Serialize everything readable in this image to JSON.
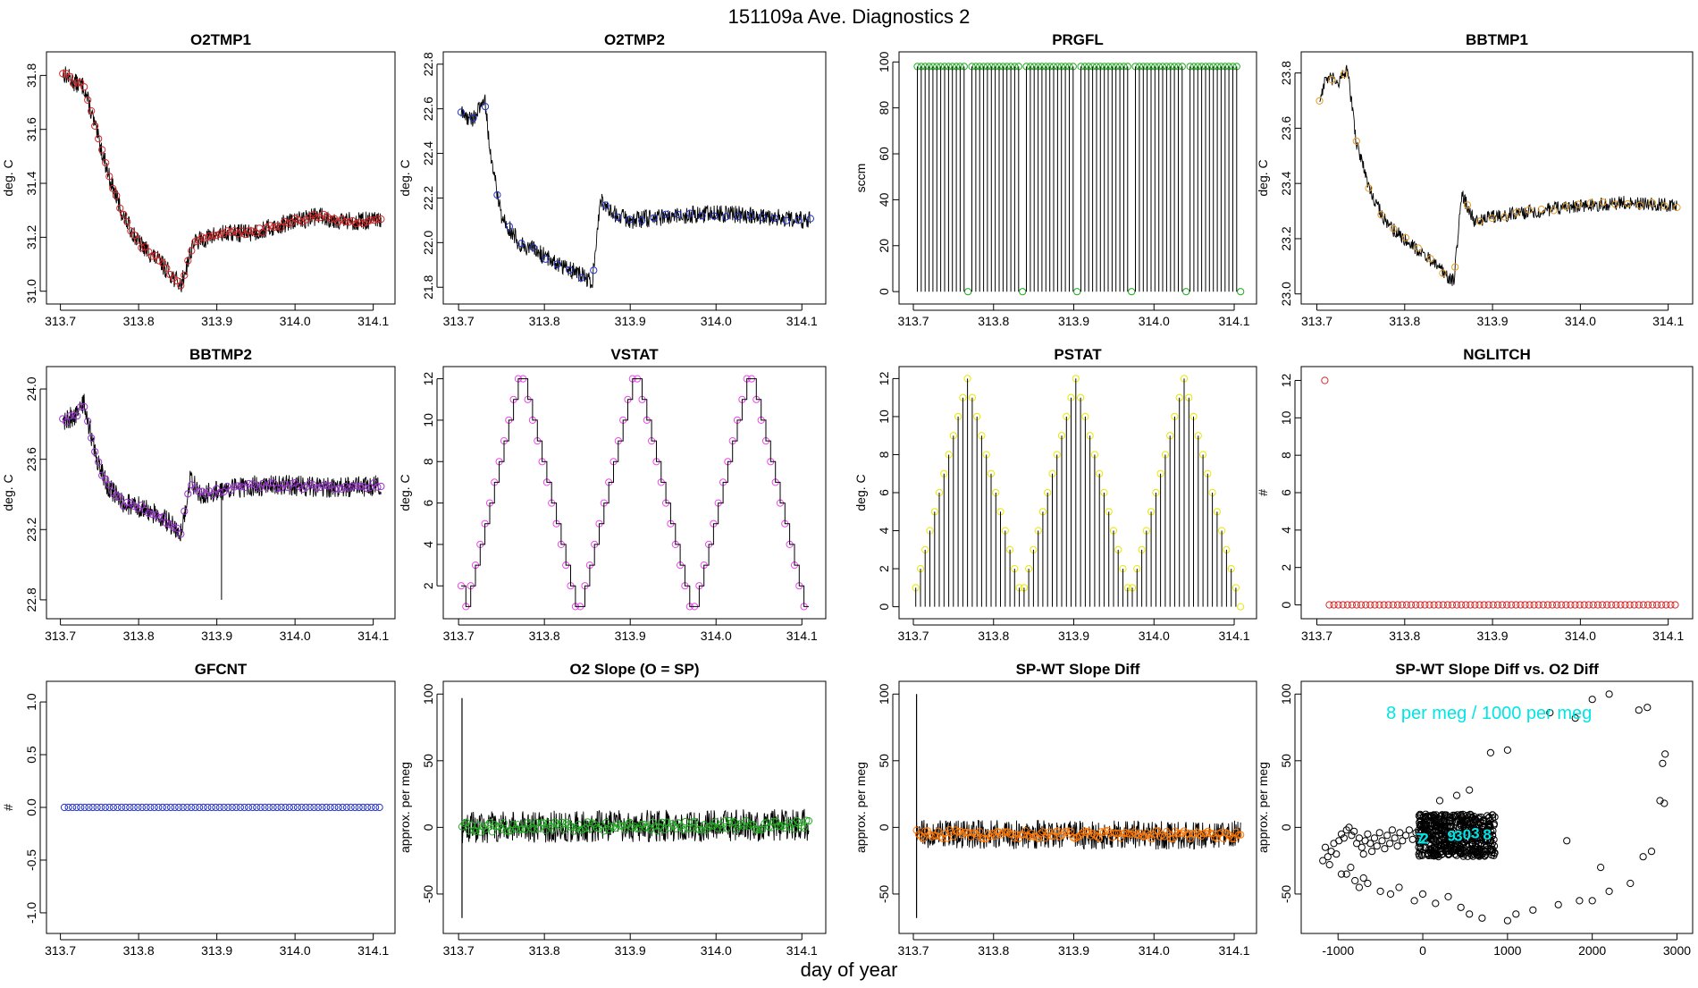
{
  "page": {
    "title": "151109a   Ave. Diagnostics 2",
    "xlabel": "day of year"
  },
  "colors": {
    "red": "#d62728",
    "blue": "#2233cc",
    "green": "#22aa22",
    "orange": "#e69b22",
    "purple": "#9933cc",
    "magenta": "#ee44ee",
    "yellow": "#e8e800",
    "cyan": "#00e5e5",
    "orange_dark": "#ff7700",
    "black": "#000000"
  },
  "chart_data": [
    {
      "id": "o2tmp1",
      "type": "line",
      "title": "O2TMP1",
      "ylabel": "deg. C",
      "xlim": [
        313.7,
        314.11
      ],
      "ylim": [
        30.99,
        31.85
      ],
      "xticks": [
        313.7,
        313.8,
        313.9,
        314.0,
        314.1
      ],
      "xtick_labels": [
        "313.7",
        "313.8",
        "313.9",
        "314.0",
        "314.1"
      ],
      "yticks": [
        31.0,
        31.2,
        31.4,
        31.6,
        31.8
      ],
      "ytick_labels": [
        "31.0",
        "31.2",
        "31.4",
        "31.6",
        "31.8"
      ],
      "trace": {
        "x": [
          313.703,
          313.72,
          313.73,
          313.75,
          313.765,
          313.78,
          313.8,
          313.83,
          313.854,
          313.87,
          313.9,
          313.95,
          314.0,
          314.03,
          314.06,
          314.11
        ],
        "y": [
          31.81,
          31.77,
          31.76,
          31.55,
          31.4,
          31.28,
          31.18,
          31.1,
          31.02,
          31.18,
          31.21,
          31.22,
          31.26,
          31.28,
          31.26,
          31.26
        ]
      },
      "noise": 0.035,
      "marker_color": "red",
      "marker_count": 90
    },
    {
      "id": "o2tmp2",
      "type": "line",
      "title": "O2TMP2",
      "ylabel": "deg. C",
      "xlim": [
        313.7,
        314.11
      ],
      "ylim": [
        21.77,
        22.81
      ],
      "xticks": [
        313.7,
        313.8,
        313.9,
        314.0,
        314.1
      ],
      "xtick_labels": [
        "313.7",
        "313.8",
        "313.9",
        "314.0",
        "314.1"
      ],
      "yticks": [
        21.8,
        22.0,
        22.2,
        22.4,
        22.6,
        22.8
      ],
      "ytick_labels": [
        "21.8",
        "22.0",
        "22.2",
        "22.4",
        "22.6",
        "22.8"
      ],
      "trace": {
        "x": [
          313.703,
          313.715,
          313.725,
          313.73,
          313.737,
          313.75,
          313.77,
          313.8,
          313.84,
          313.856,
          313.865,
          313.875,
          313.9,
          313.95,
          314.0,
          314.05,
          314.11
        ],
        "y": [
          22.58,
          22.55,
          22.6,
          22.66,
          22.4,
          22.12,
          22.0,
          21.94,
          21.86,
          21.82,
          22.2,
          22.14,
          22.1,
          22.12,
          22.13,
          22.12,
          22.1
        ]
      },
      "noise": 0.04,
      "marker_color": "blue",
      "marker_count": 30
    },
    {
      "id": "prgfl",
      "type": "spike",
      "title": "PRGFL",
      "ylabel": "sccm",
      "xlim": [
        313.7,
        314.11
      ],
      "ylim": [
        -1,
        100
      ],
      "xticks": [
        313.7,
        313.8,
        313.9,
        314.0,
        314.1
      ],
      "xtick_labels": [
        "313.7",
        "313.8",
        "313.9",
        "314.0",
        "314.1"
      ],
      "yticks": [
        0,
        20,
        40,
        60,
        80,
        100
      ],
      "ytick_labels": [
        "0",
        "20",
        "40",
        "60",
        "80",
        "100"
      ],
      "spike": {
        "x_start": 313.705,
        "x_end": 314.108,
        "count": 84,
        "high": 98,
        "low": 0,
        "low_every": 14
      },
      "marker_color": "green"
    },
    {
      "id": "bbtmp1",
      "type": "line",
      "title": "BBTMP1",
      "ylabel": "deg. C",
      "xlim": [
        313.7,
        314.11
      ],
      "ylim": [
        23.0,
        23.84
      ],
      "xticks": [
        313.7,
        313.8,
        313.9,
        314.0,
        314.1
      ],
      "xtick_labels": [
        "313.7",
        "313.8",
        "313.9",
        "314.0",
        "314.1"
      ],
      "yticks": [
        23.0,
        23.2,
        23.4,
        23.6,
        23.8
      ],
      "ytick_labels": [
        "23.0",
        "23.2",
        "23.4",
        "23.6",
        "23.8"
      ],
      "trace": {
        "x": [
          313.703,
          313.71,
          313.725,
          313.735,
          313.745,
          313.76,
          313.78,
          313.8,
          313.83,
          313.85,
          313.856,
          313.865,
          313.88,
          313.9,
          313.95,
          314.0,
          314.05,
          314.11
        ],
        "y": [
          23.7,
          23.78,
          23.77,
          23.81,
          23.55,
          23.38,
          23.25,
          23.2,
          23.12,
          23.06,
          23.05,
          23.36,
          23.26,
          23.28,
          23.3,
          23.32,
          23.33,
          23.32
        ]
      },
      "noise": 0.025,
      "marker_color": "orange",
      "marker_count": 30
    },
    {
      "id": "bbtmp2",
      "type": "line",
      "title": "BBTMP2",
      "ylabel": "deg. C",
      "xlim": [
        313.7,
        314.11
      ],
      "ylim": [
        22.75,
        24.07
      ],
      "xticks": [
        313.7,
        313.8,
        313.9,
        314.0,
        314.1
      ],
      "xtick_labels": [
        "313.7",
        "313.8",
        "313.9",
        "314.0",
        "314.1"
      ],
      "yticks": [
        22.8,
        23.2,
        23.6,
        24.0
      ],
      "ytick_labels": [
        "22.8",
        "23.2",
        "23.6",
        "24.0"
      ],
      "trace": {
        "x": [
          313.703,
          313.72,
          313.73,
          313.745,
          313.76,
          313.78,
          313.8,
          313.83,
          313.854,
          313.866,
          313.88,
          313.9,
          313.95,
          314.0,
          314.05,
          314.11
        ],
        "y": [
          23.82,
          23.85,
          23.92,
          23.62,
          23.45,
          23.35,
          23.33,
          23.27,
          23.18,
          23.48,
          23.4,
          23.42,
          23.45,
          23.45,
          23.44,
          23.45
        ]
      },
      "noise": 0.06,
      "glitch": {
        "x": 313.906,
        "y": 22.8
      },
      "marker_color": "purple",
      "marker_count": 90
    },
    {
      "id": "vstat",
      "type": "step",
      "title": "VSTAT",
      "ylabel": "deg. C",
      "xlim": [
        313.7,
        314.11
      ],
      "ylim": [
        0.9,
        12.1
      ],
      "xticks": [
        313.7,
        313.8,
        313.9,
        314.0,
        314.1
      ],
      "xtick_labels": [
        "313.7",
        "313.8",
        "313.9",
        "314.0",
        "314.1"
      ],
      "yticks": [
        2,
        4,
        6,
        8,
        10,
        12
      ],
      "ytick_labels": [
        "2",
        "4",
        "6",
        "8",
        "10",
        "12"
      ],
      "sequence": [
        2,
        1,
        2,
        3,
        4,
        5,
        6,
        7,
        8,
        9,
        10,
        11,
        12,
        12,
        11,
        10,
        9,
        8,
        7,
        6,
        5,
        4,
        3,
        2,
        1,
        1,
        2,
        3,
        4,
        5,
        6,
        7,
        8,
        9,
        10,
        11,
        12,
        12,
        11,
        10,
        9,
        8,
        7,
        6,
        5,
        4,
        3,
        2,
        1,
        1,
        2,
        3,
        4,
        5,
        6,
        7,
        8,
        9,
        10,
        11,
        12,
        12,
        11,
        10,
        9,
        8,
        7,
        6,
        5,
        4,
        3,
        2,
        1
      ],
      "x_start": 313.703,
      "x_end": 314.108,
      "marker_color": "magenta"
    },
    {
      "id": "pstat",
      "type": "spike",
      "title": "PSTAT",
      "ylabel": "deg. C",
      "xlim": [
        313.7,
        314.11
      ],
      "ylim": [
        -0.1,
        12.1
      ],
      "xticks": [
        313.7,
        313.8,
        313.9,
        314.0,
        314.1
      ],
      "xtick_labels": [
        "313.7",
        "313.8",
        "313.9",
        "314.0",
        "314.1"
      ],
      "yticks": [
        0,
        2,
        4,
        6,
        8,
        10,
        12
      ],
      "ytick_labels": [
        "0",
        "2",
        "4",
        "6",
        "8",
        "10",
        "12"
      ],
      "spike": {
        "x_start": 313.703,
        "x_end": 314.108,
        "sequence": [
          1,
          2,
          3,
          4,
          5,
          6,
          7,
          8,
          9,
          10,
          11,
          12,
          11,
          10,
          9,
          8,
          7,
          6,
          5,
          4,
          3,
          2,
          1,
          1,
          2,
          3,
          4,
          5,
          6,
          7,
          8,
          9,
          10,
          11,
          12,
          11,
          10,
          9,
          8,
          7,
          6,
          5,
          4,
          3,
          2,
          1,
          1,
          2,
          3,
          4,
          5,
          6,
          7,
          8,
          9,
          10,
          11,
          12,
          11,
          10,
          9,
          8,
          7,
          6,
          5,
          4,
          3,
          2,
          1,
          0
        ]
      },
      "marker_color": "yellow"
    },
    {
      "id": "nglitch",
      "type": "scatter",
      "title": "NGLITCH",
      "ylabel": "#",
      "xlim": [
        313.7,
        314.11
      ],
      "ylim": [
        -0.2,
        12.2
      ],
      "xticks": [
        313.7,
        313.8,
        313.9,
        314.0,
        314.1
      ],
      "xtick_labels": [
        "313.7",
        "313.8",
        "313.9",
        "314.0",
        "314.1"
      ],
      "yticks": [
        0,
        2,
        4,
        6,
        8,
        10,
        12
      ],
      "ytick_labels": [
        "0",
        "2",
        "4",
        "6",
        "8",
        "10",
        "12"
      ],
      "points": {
        "x_start": 313.709,
        "x_end": 314.108,
        "count": 78,
        "y": 0,
        "first_y": 12
      },
      "marker_color": "red"
    },
    {
      "id": "gfcnt",
      "type": "scatter",
      "title": "GFCNT",
      "ylabel": "#",
      "xlim": [
        313.7,
        314.11
      ],
      "ylim": [
        -1.1,
        1.1
      ],
      "xticks": [
        313.7,
        313.8,
        313.9,
        314.0,
        314.1
      ],
      "xtick_labels": [
        "313.7",
        "313.8",
        "313.9",
        "314.0",
        "314.1"
      ],
      "yticks": [
        -1.0,
        -0.5,
        0.0,
        0.5,
        1.0
      ],
      "ytick_labels": [
        "-1.0",
        "-0.5",
        "0.0",
        "0.5",
        "1.0"
      ],
      "points": {
        "x_start": 313.705,
        "x_end": 314.108,
        "count": 78,
        "y": 0
      },
      "marker_color": "blue"
    },
    {
      "id": "o2slope",
      "type": "line",
      "title": "O2 Slope (O = SP)",
      "ylabel": "approx. per meg",
      "xlim": [
        313.7,
        314.11
      ],
      "ylim": [
        -72,
        102
      ],
      "xticks": [
        313.7,
        313.8,
        313.9,
        314.0,
        314.1
      ],
      "xtick_labels": [
        "313.7",
        "313.8",
        "313.9",
        "314.0",
        "314.1"
      ],
      "yticks": [
        -50,
        0,
        50,
        100
      ],
      "ytick_labels": [
        "-50",
        "0",
        "50",
        "100"
      ],
      "trace": {
        "x": [
          313.704,
          314.108
        ],
        "y": [
          0,
          2
        ]
      },
      "noise": 12,
      "spike": {
        "x": 313.704,
        "y_top": 97,
        "y_bottom": -68
      },
      "marker_color": "green",
      "marker_count": 150
    },
    {
      "id": "spwt",
      "type": "line",
      "title": "SP-WT Slope Diff",
      "ylabel": "approx. per meg",
      "xlim": [
        313.7,
        314.11
      ],
      "ylim": [
        -72,
        102
      ],
      "xticks": [
        313.7,
        313.8,
        313.9,
        314.0,
        314.1
      ],
      "xtick_labels": [
        "313.7",
        "313.8",
        "313.9",
        "314.0",
        "314.1"
      ],
      "yticks": [
        -50,
        0,
        50,
        100
      ],
      "ytick_labels": [
        "-50",
        "0",
        "50",
        "100"
      ],
      "trace": {
        "x": [
          313.704,
          314.108
        ],
        "y": [
          -5,
          -6
        ]
      },
      "noise": 11,
      "spike": {
        "x": 313.704,
        "y_top": 100,
        "y_bottom": -68
      },
      "marker_color": "orange_dark",
      "marker_count": 150
    },
    {
      "id": "spwt_vs_o2",
      "type": "scatter",
      "title": "SP-WT Slope Diff vs. O2 Diff",
      "ylabel": "approx. per meg",
      "xlim": [
        -1250,
        3000
      ],
      "ylim": [
        -72,
        102
      ],
      "xticks": [
        -1000,
        0,
        1000,
        2000,
        3000
      ],
      "xtick_labels": [
        "-1000",
        "0",
        "1000",
        "2000",
        "3000"
      ],
      "yticks": [
        -50,
        0,
        50,
        100
      ],
      "ytick_labels": [
        "-50",
        "0",
        "50",
        "100"
      ],
      "annotation": "8 per meg / 1000 per meg",
      "scatter_points": [
        [
          -1180,
          -25
        ],
        [
          -1150,
          -15
        ],
        [
          -1120,
          -22
        ],
        [
          -1100,
          -28
        ],
        [
          -1080,
          -18
        ],
        [
          -1050,
          -12
        ],
        [
          -1020,
          -20
        ],
        [
          -990,
          -10
        ],
        [
          -960,
          -5
        ],
        [
          -930,
          -8
        ],
        [
          -900,
          -2
        ],
        [
          -870,
          0
        ],
        [
          -840,
          -6
        ],
        [
          -810,
          -3
        ],
        [
          -780,
          -12
        ],
        [
          -750,
          -8
        ],
        [
          -720,
          -15
        ],
        [
          -700,
          -20
        ],
        [
          -680,
          -10
        ],
        [
          -650,
          -5
        ],
        [
          -620,
          -12
        ],
        [
          -600,
          -18
        ],
        [
          -570,
          -8
        ],
        [
          -540,
          -14
        ],
        [
          -510,
          -4
        ],
        [
          -480,
          -10
        ],
        [
          -450,
          -16
        ],
        [
          -420,
          -6
        ],
        [
          -390,
          -12
        ],
        [
          -360,
          -2
        ],
        [
          -330,
          -8
        ],
        [
          -300,
          -14
        ],
        [
          -270,
          -4
        ],
        [
          -240,
          -10
        ],
        [
          -200,
          -6
        ],
        [
          -160,
          -2
        ],
        [
          -120,
          -9
        ],
        [
          -80,
          -4
        ],
        [
          -960,
          -35
        ],
        [
          -900,
          -35
        ],
        [
          -850,
          -30
        ],
        [
          -800,
          -40
        ],
        [
          -750,
          -45
        ],
        [
          -700,
          -38
        ],
        [
          -650,
          -42
        ],
        [
          -500,
          -48
        ],
        [
          -380,
          -50
        ],
        [
          -280,
          -45
        ],
        [
          -100,
          -55
        ],
        [
          0,
          -50
        ],
        [
          150,
          -57
        ],
        [
          300,
          -52
        ],
        [
          450,
          -60
        ],
        [
          550,
          -65
        ],
        [
          700,
          -68
        ],
        [
          1000,
          -70
        ],
        [
          1100,
          -65
        ],
        [
          1300,
          -62
        ],
        [
          1600,
          -58
        ],
        [
          1850,
          -55
        ],
        [
          2000,
          -55
        ],
        [
          2200,
          -48
        ],
        [
          2450,
          -42
        ],
        [
          2600,
          -22
        ],
        [
          2700,
          -18
        ],
        [
          2800,
          20
        ],
        [
          2850,
          18
        ],
        [
          2830,
          48
        ],
        [
          2860,
          55
        ],
        [
          2650,
          90
        ],
        [
          2550,
          88
        ],
        [
          2200,
          100
        ],
        [
          2000,
          96
        ],
        [
          1800,
          82
        ],
        [
          1500,
          86
        ],
        [
          1000,
          58
        ],
        [
          800,
          56
        ],
        [
          550,
          28
        ],
        [
          400,
          24
        ],
        [
          200,
          20
        ],
        [
          1700,
          -10
        ],
        [
          2100,
          -30
        ]
      ],
      "cluster": {
        "x_range": [
          -50,
          850
        ],
        "y_range": [
          -22,
          10
        ],
        "count": 500
      },
      "cyan_labels": [
        {
          "x": -30,
          "y": -8,
          "text": "7"
        },
        {
          "x": 20,
          "y": -8,
          "text": "2"
        },
        {
          "x": 340,
          "y": -6,
          "text": "9"
        },
        {
          "x": 420,
          "y": -6,
          "text": "3"
        },
        {
          "x": 520,
          "y": -5,
          "text": "0"
        },
        {
          "x": 620,
          "y": -4,
          "text": "3"
        },
        {
          "x": 760,
          "y": -5,
          "text": "8"
        }
      ],
      "marker_color": "black"
    }
  ]
}
